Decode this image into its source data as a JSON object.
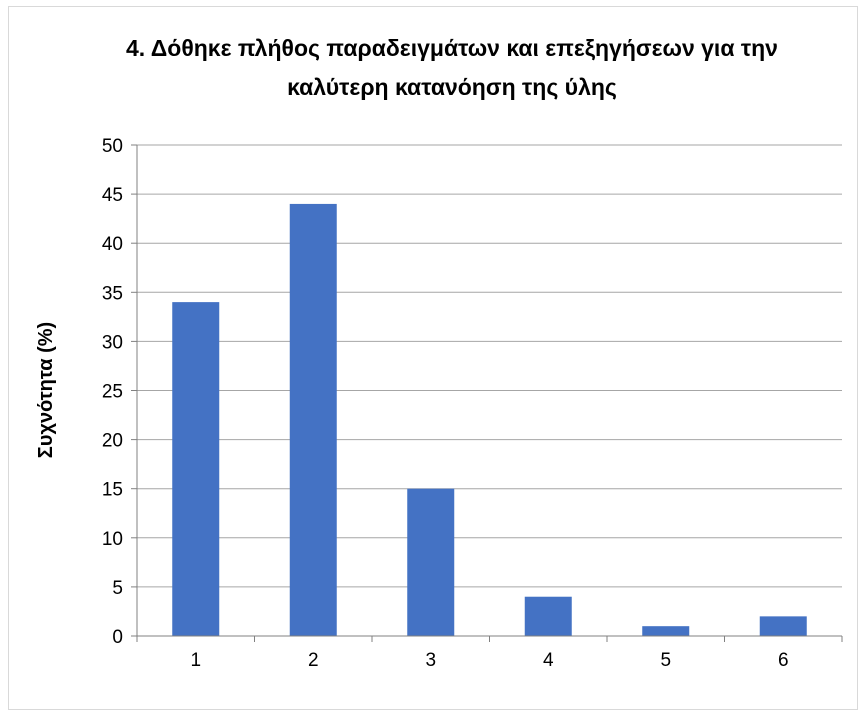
{
  "chart_data": {
    "type": "bar",
    "title_lines": [
      "4. Δόθηκε πλήθος παραδειγμάτων και επεξηγήσεων για την",
      "καλύτερη κατανόηση της ύλης"
    ],
    "xlabel": "",
    "ylabel": "Συχνότητα (%)",
    "categories": [
      "1",
      "2",
      "3",
      "4",
      "5",
      "6"
    ],
    "values": [
      34,
      44,
      15,
      4,
      1,
      2
    ],
    "ylim": [
      0,
      50
    ],
    "yticks": [
      "0",
      "5",
      "10",
      "15",
      "20",
      "25",
      "30",
      "35",
      "40",
      "45",
      "50"
    ],
    "grid": true,
    "legend": "none",
    "bar_color": "#4472c4",
    "grid_color": "#a6a6a6"
  }
}
